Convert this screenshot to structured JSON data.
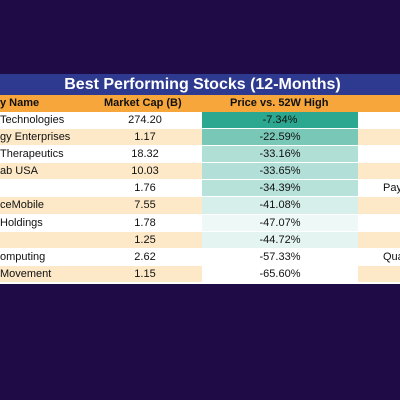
{
  "table": {
    "title": "Best Performing Stocks (12-Months)",
    "headers": {
      "name": "y Name",
      "market_cap": "Market Cap (B)",
      "price_vs_high": "Price vs. 52W High"
    },
    "rows": [
      {
        "name": "Technologies",
        "market_cap": "274.20",
        "pct": "-7.34%",
        "pct_color": "#2ba88f",
        "extra": ""
      },
      {
        "name": "gy Enterprises",
        "market_cap": "1.17",
        "pct": "-22.59%",
        "pct_color": "#79c8b7",
        "extra": ""
      },
      {
        "name": "Therapeutics",
        "market_cap": "18.32",
        "pct": "-33.16%",
        "pct_color": "#b0dfd6",
        "extra": ""
      },
      {
        "name": "ab USA",
        "market_cap": "10.03",
        "pct": "-33.65%",
        "pct_color": "#b2e0d8",
        "extra": ""
      },
      {
        "name": "",
        "market_cap": "1.76",
        "pct": "-34.39%",
        "pct_color": "#b7e2da",
        "extra": "Pay"
      },
      {
        "name": "ceMobile",
        "market_cap": "7.55",
        "pct": "-41.08%",
        "pct_color": "#d6efea",
        "extra": ""
      },
      {
        "name": "Holdings",
        "market_cap": "1.78",
        "pct": "-47.07%",
        "pct_color": "#eef8f6",
        "extra": ""
      },
      {
        "name": "",
        "market_cap": "1.25",
        "pct": "-44.72%",
        "pct_color": "#e4f4f1",
        "extra": ""
      },
      {
        "name": "omputing",
        "market_cap": "2.62",
        "pct": "-57.33%",
        "pct_color": "#ffffff",
        "extra": "Qua"
      },
      {
        "name": "Movement",
        "market_cap": "1.15",
        "pct": "-65.60%",
        "pct_color": "#ffffff",
        "extra": ""
      }
    ]
  },
  "colors": {
    "background": "#1f0b45",
    "title_bar": "#2e3a8f",
    "header_bar": "#f6a63b",
    "stripe": "#fde9c8"
  }
}
